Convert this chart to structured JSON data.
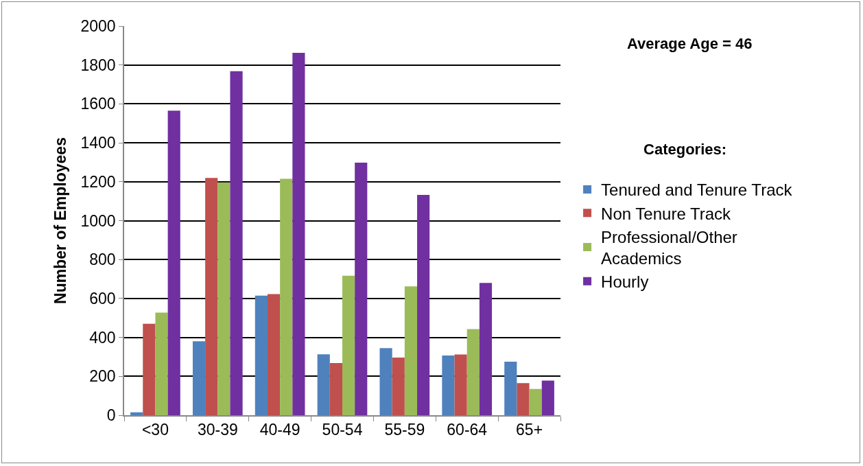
{
  "chart_data": {
    "type": "bar",
    "ylabel": "Number of Employees",
    "legend_title": "Categories:",
    "annotations": [
      "Average Age = 46"
    ],
    "categories": [
      "<30",
      "30-39",
      "40-49",
      "50-54",
      "55-59",
      "60-64",
      "65+"
    ],
    "series": [
      {
        "name": "Tenured and Tenure Track",
        "color": "#4f81bd",
        "values": [
          15,
          380,
          615,
          313,
          345,
          307,
          275
        ]
      },
      {
        "name": "Non Tenure Track",
        "color": "#c0504d",
        "values": [
          470,
          1220,
          623,
          268,
          296,
          312,
          165
        ]
      },
      {
        "name": "Professional/Other Academics",
        "color": "#9bbb59",
        "values": [
          527,
          1197,
          1215,
          717,
          662,
          443,
          135
        ]
      },
      {
        "name": "Hourly",
        "color": "#7030a0",
        "values": [
          1565,
          1768,
          1862,
          1298,
          1132,
          680,
          178
        ]
      }
    ],
    "ylim": [
      0,
      2000
    ],
    "yticks": [
      0,
      200,
      400,
      600,
      800,
      1000,
      1200,
      1400,
      1600,
      1800,
      2000
    ],
    "grid": "y",
    "legend": "right"
  }
}
